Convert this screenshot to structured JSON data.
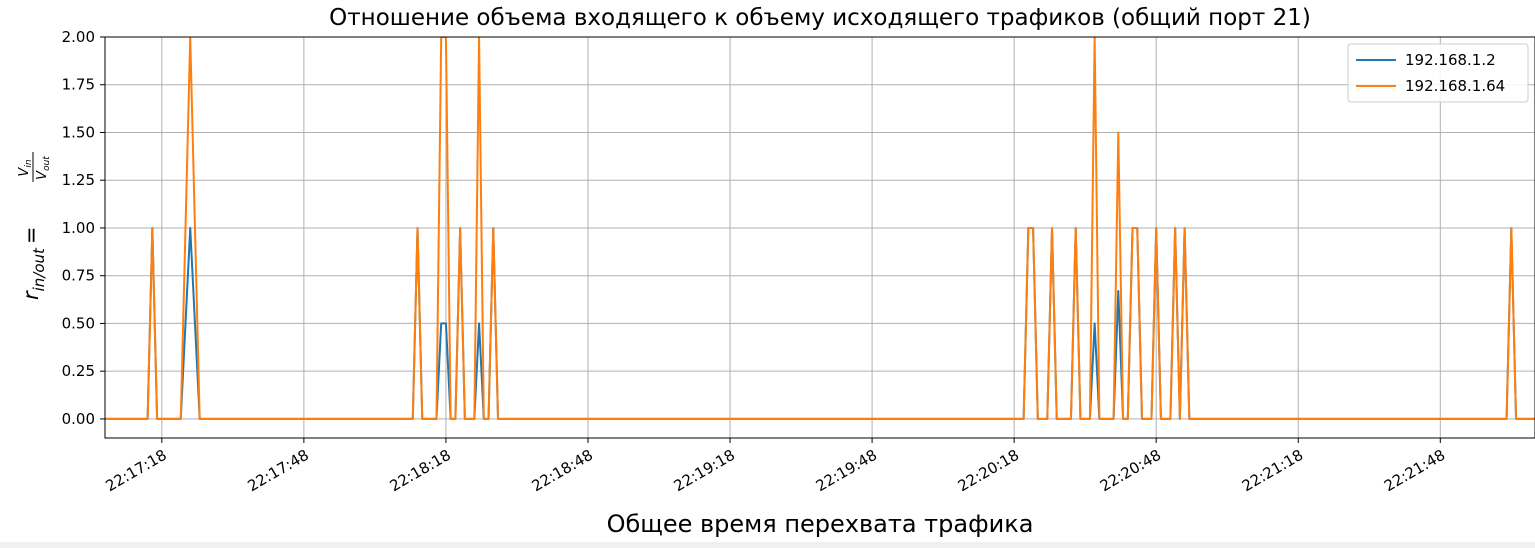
{
  "chart_data": {
    "type": "line",
    "title": "Отношение объема входящего к объему исходящего трафиков (общий порт 21)",
    "xlabel": "Общее время перехвата трафика",
    "ylabel": {
      "main": "r",
      "main_sub": "in/out",
      "equals": "=",
      "num": "V",
      "num_sub": "in",
      "den": "V",
      "den_sub": "out"
    },
    "xlim": [
      "22:17:06",
      "22:22:08"
    ],
    "ylim": [
      -0.1,
      2.0
    ],
    "x_ticks": [
      "22:17:18",
      "22:17:48",
      "22:18:18",
      "22:18:48",
      "22:19:18",
      "22:19:48",
      "22:20:18",
      "22:20:48",
      "22:21:18",
      "22:21:48"
    ],
    "y_ticks": [
      "0.00",
      "0.25",
      "0.50",
      "0.75",
      "1.00",
      "1.25",
      "1.50",
      "1.75",
      "2.00"
    ],
    "grid": true,
    "legend_position": "top-right",
    "series": [
      {
        "name": "192.168.1.2",
        "color": "#1f77b4",
        "points": [
          [
            "22:17:06",
            0
          ],
          [
            "22:17:15",
            0
          ],
          [
            "22:17:16",
            1
          ],
          [
            "22:17:17",
            0
          ],
          [
            "22:17:22",
            0
          ],
          [
            "22:17:24",
            1
          ],
          [
            "22:17:26",
            0
          ],
          [
            "22:18:11",
            0
          ],
          [
            "22:18:12",
            1
          ],
          [
            "22:18:13",
            0
          ],
          [
            "22:18:16",
            0
          ],
          [
            "22:18:17",
            0.5
          ],
          [
            "22:18:18",
            0.5
          ],
          [
            "22:18:19",
            0
          ],
          [
            "22:18:20",
            0
          ],
          [
            "22:18:21",
            1
          ],
          [
            "22:18:22",
            0
          ],
          [
            "22:18:24",
            0
          ],
          [
            "22:18:25",
            0.5
          ],
          [
            "22:18:26",
            0
          ],
          [
            "22:18:27",
            0
          ],
          [
            "22:18:28",
            1
          ],
          [
            "22:18:29",
            0
          ],
          [
            "22:20:20",
            0
          ],
          [
            "22:20:21",
            1
          ],
          [
            "22:20:22",
            1
          ],
          [
            "22:20:23",
            0
          ],
          [
            "22:20:25",
            0
          ],
          [
            "22:20:26",
            1
          ],
          [
            "22:20:27",
            0
          ],
          [
            "22:20:30",
            0
          ],
          [
            "22:20:31",
            1
          ],
          [
            "22:20:32",
            0
          ],
          [
            "22:20:34",
            0
          ],
          [
            "22:20:35",
            0.5
          ],
          [
            "22:20:36",
            0
          ],
          [
            "22:20:39",
            0
          ],
          [
            "22:20:40",
            0.67
          ],
          [
            "22:20:41",
            0
          ],
          [
            "22:20:42",
            0
          ],
          [
            "22:20:43",
            1
          ],
          [
            "22:20:44",
            1
          ],
          [
            "22:20:45",
            0
          ],
          [
            "22:20:47",
            0
          ],
          [
            "22:20:48",
            1
          ],
          [
            "22:20:49",
            0
          ],
          [
            "22:20:51",
            0
          ],
          [
            "22:20:52",
            1
          ],
          [
            "22:20:53",
            0
          ],
          [
            "22:20:54",
            1
          ],
          [
            "22:20:55",
            0
          ],
          [
            "22:22:02",
            0
          ],
          [
            "22:22:03",
            1
          ],
          [
            "22:22:04",
            0
          ],
          [
            "22:22:08",
            0
          ]
        ]
      },
      {
        "name": "192.168.1.64",
        "color": "#ff7f0e",
        "points": [
          [
            "22:17:06",
            0
          ],
          [
            "22:17:15",
            0
          ],
          [
            "22:17:16",
            1
          ],
          [
            "22:17:17",
            0
          ],
          [
            "22:17:22",
            0
          ],
          [
            "22:17:24",
            2
          ],
          [
            "22:17:26",
            0
          ],
          [
            "22:18:11",
            0
          ],
          [
            "22:18:12",
            1
          ],
          [
            "22:18:13",
            0
          ],
          [
            "22:18:16",
            0
          ],
          [
            "22:18:17",
            2
          ],
          [
            "22:18:18",
            2
          ],
          [
            "22:18:19",
            0
          ],
          [
            "22:18:20",
            0
          ],
          [
            "22:18:21",
            1
          ],
          [
            "22:18:22",
            0
          ],
          [
            "22:18:24",
            0
          ],
          [
            "22:18:25",
            2
          ],
          [
            "22:18:26",
            0
          ],
          [
            "22:18:27",
            0
          ],
          [
            "22:18:28",
            1
          ],
          [
            "22:18:29",
            0
          ],
          [
            "22:20:20",
            0
          ],
          [
            "22:20:21",
            1
          ],
          [
            "22:20:22",
            1
          ],
          [
            "22:20:23",
            0
          ],
          [
            "22:20:25",
            0
          ],
          [
            "22:20:26",
            1
          ],
          [
            "22:20:27",
            0
          ],
          [
            "22:20:30",
            0
          ],
          [
            "22:20:31",
            1
          ],
          [
            "22:20:32",
            0
          ],
          [
            "22:20:34",
            0
          ],
          [
            "22:20:35",
            2
          ],
          [
            "22:20:36",
            0
          ],
          [
            "22:20:39",
            0
          ],
          [
            "22:20:40",
            1.5
          ],
          [
            "22:20:41",
            0
          ],
          [
            "22:20:42",
            0
          ],
          [
            "22:20:43",
            1
          ],
          [
            "22:20:44",
            1
          ],
          [
            "22:20:45",
            0
          ],
          [
            "22:20:47",
            0
          ],
          [
            "22:20:48",
            1
          ],
          [
            "22:20:49",
            0
          ],
          [
            "22:20:51",
            0
          ],
          [
            "22:20:52",
            1
          ],
          [
            "22:20:53",
            0
          ],
          [
            "22:20:54",
            1
          ],
          [
            "22:20:55",
            0
          ],
          [
            "22:22:02",
            0
          ],
          [
            "22:22:03",
            1
          ],
          [
            "22:22:04",
            0
          ],
          [
            "22:22:08",
            0
          ]
        ]
      }
    ]
  }
}
